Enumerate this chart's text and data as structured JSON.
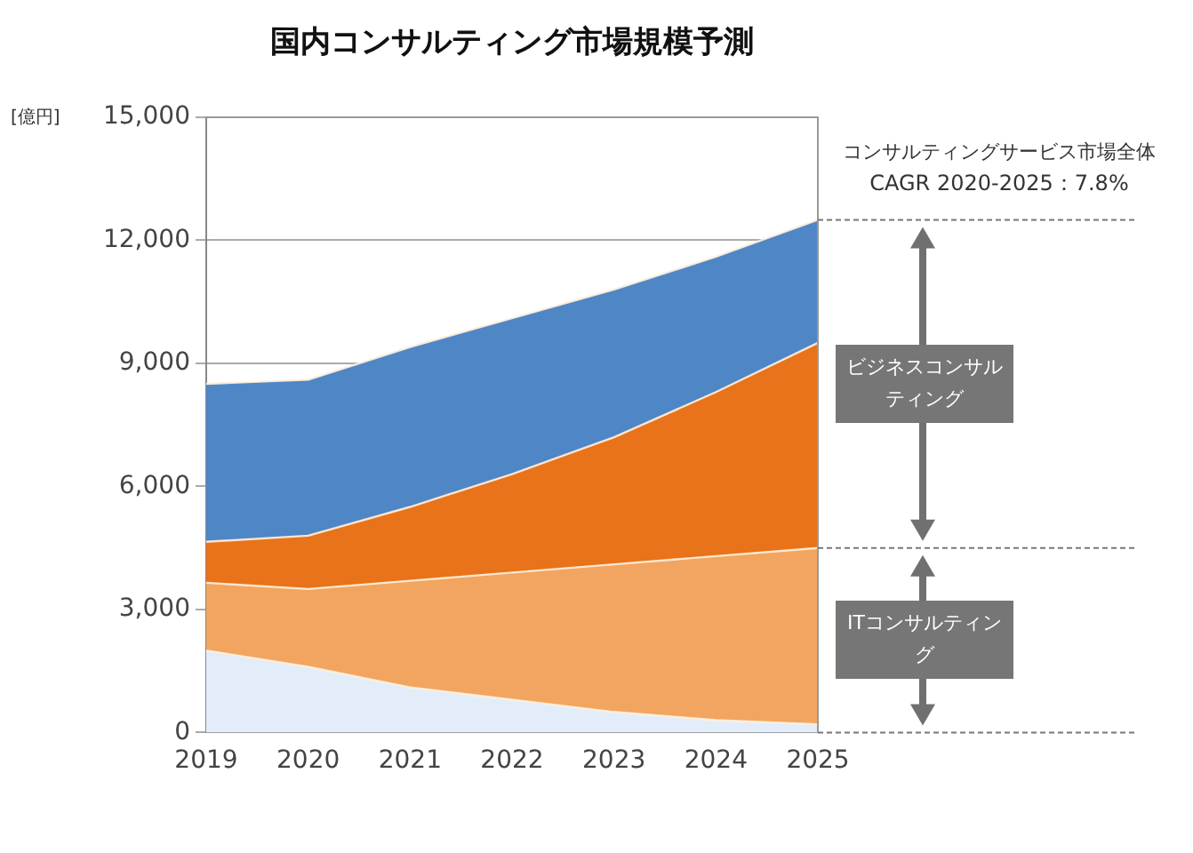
{
  "chart_data": {
    "type": "area",
    "title": "国内コンサルティング市場規模予測",
    "ylabel": "[億円]",
    "categories": [
      "2019",
      "2020",
      "2021",
      "2022",
      "2023",
      "2024",
      "2025"
    ],
    "stacked": true,
    "series": [
      {
        "color": "#e2edf9",
        "values": [
          2000,
          1600,
          1100,
          800,
          500,
          300,
          200
        ]
      },
      {
        "color": "#f2a560",
        "values": [
          1650,
          1900,
          2600,
          3100,
          3600,
          4000,
          4300
        ]
      },
      {
        "color": "#e8731a",
        "values": [
          1000,
          1300,
          1800,
          2400,
          3100,
          4000,
          5000
        ]
      },
      {
        "color": "#4f86c6",
        "values": [
          3850,
          3800,
          3900,
          3800,
          3600,
          3300,
          3000
        ]
      }
    ],
    "ylim": [
      0,
      15000
    ],
    "yticks": [
      0,
      {
        "value": 3000,
        "label": "3,000"
      },
      {
        "value": 6000,
        "label": "6,000"
      },
      {
        "value": 9000,
        "label": "9,000"
      },
      {
        "value": 12000,
        "label": "12,000"
      },
      {
        "value": 15000,
        "label": "15,000"
      }
    ],
    "grid": "y",
    "annotations": [
      "コンサルティングサービス市場全体",
      "CAGR 2020-2025：7.8%",
      "ビジネスコンサルティング",
      "ITコンサルティング"
    ]
  }
}
